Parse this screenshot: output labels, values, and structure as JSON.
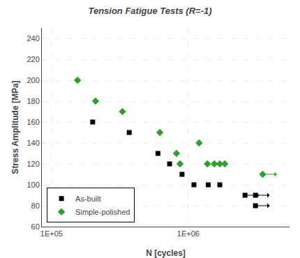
{
  "chart_data": {
    "type": "scatter",
    "title": "Tension Fatigue Tests (R=-1)",
    "xlabel": "N [cycles]",
    "ylabel": "Stress Amplitude [MPa]",
    "log": "x",
    "xlim": [
      85000,
      5500000
    ],
    "xticks": [
      {
        "value": 100000,
        "label": "1E+05"
      },
      {
        "value": 1000000,
        "label": "1E+06"
      }
    ],
    "ylim": [
      60,
      250
    ],
    "yticks": [
      60,
      80,
      100,
      120,
      140,
      160,
      180,
      200,
      220,
      240
    ],
    "grid": true,
    "legend": "lower left",
    "series": [
      {
        "name": "As-built",
        "color": "#000000",
        "marker": "square",
        "x": [
          200000,
          370000,
          600000,
          730000,
          900000,
          1100000,
          1400000,
          1700000
        ],
        "y": [
          160,
          150,
          130,
          120,
          110,
          100,
          100,
          100
        ],
        "runout": {
          "x": [
            2600000,
            3100000,
            3100000
          ],
          "y": [
            90,
            90,
            80
          ]
        }
      },
      {
        "name": "Simple-polished",
        "color": "#2ca02c",
        "marker": "diamond",
        "x": [
          155000,
          210000,
          330000,
          620000,
          820000,
          870000,
          1200000,
          1380000,
          1550000,
          1700000,
          1850000
        ],
        "y": [
          200,
          180,
          170,
          150,
          130,
          120,
          140,
          120,
          120,
          120,
          120
        ],
        "runout": {
          "x": [
            3500000
          ],
          "y": [
            110
          ]
        }
      }
    ]
  }
}
